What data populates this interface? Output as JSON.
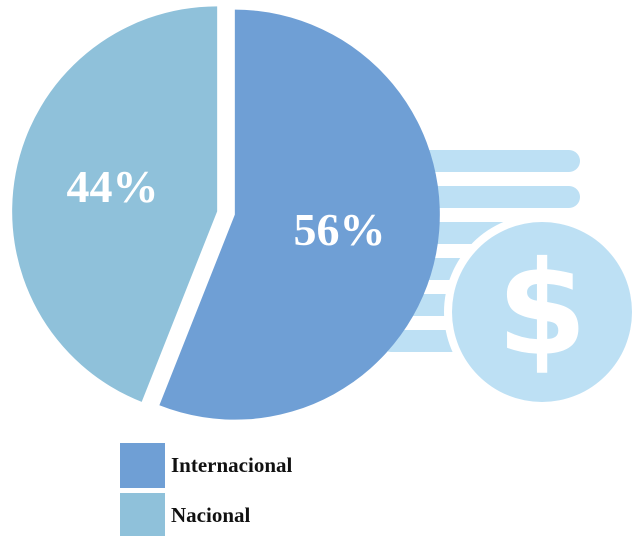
{
  "chart_data": {
    "type": "pie",
    "categories": [
      "Internacional",
      "Nacional"
    ],
    "values": [
      56,
      44
    ],
    "value_labels": [
      "56%",
      "44%"
    ],
    "colors": [
      "#6f9fd5",
      "#8fc1da"
    ]
  }
}
